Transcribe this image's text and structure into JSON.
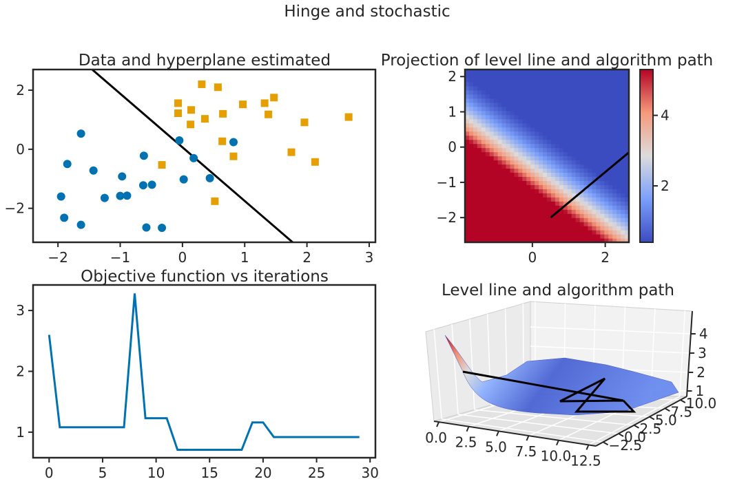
{
  "figure": {
    "suptitle": "Hinge and stochastic"
  },
  "colors": {
    "class_a": "#0072b2",
    "class_b": "#e69f00",
    "line": "#0072b2",
    "path": "#000000",
    "axis": "#262626"
  },
  "chart_data": [
    {
      "id": "scatter",
      "type": "scatter",
      "title": "Data and hyperplane estimated",
      "xlim": [
        -2.4,
        3.1
      ],
      "ylim": [
        -3.15,
        2.7
      ],
      "xticks": [
        -2,
        -1,
        0,
        1,
        2,
        3
      ],
      "yticks": [
        -2,
        0,
        2
      ],
      "xticklabels": [
        "−2",
        "−1",
        "0",
        "1",
        "2",
        "3"
      ],
      "yticklabels": [
        "−2",
        "0",
        "2"
      ],
      "series": [
        {
          "marker": "circle",
          "color": "#0072b2",
          "points": [
            [
              -1.95,
              -1.6
            ],
            [
              -1.9,
              -2.32
            ],
            [
              -1.85,
              -0.5
            ],
            [
              -1.63,
              0.53
            ],
            [
              -1.63,
              -2.56
            ],
            [
              -1.43,
              -0.72
            ],
            [
              -1.25,
              -1.65
            ],
            [
              -1.0,
              -1.58
            ],
            [
              -0.97,
              -0.92
            ],
            [
              -0.89,
              -1.57
            ],
            [
              -0.62,
              -0.22
            ],
            [
              -0.63,
              -1.22
            ],
            [
              -0.58,
              -2.65
            ],
            [
              -0.49,
              -1.2
            ],
            [
              -0.33,
              -2.66
            ],
            [
              -0.05,
              0.3
            ],
            [
              0.02,
              -1.02
            ],
            [
              0.18,
              -0.3
            ],
            [
              0.44,
              -0.98
            ],
            [
              0.82,
              0.24
            ]
          ]
        },
        {
          "marker": "square",
          "color": "#e69f00",
          "points": [
            [
              -0.33,
              -0.53
            ],
            [
              -0.07,
              1.56
            ],
            [
              -0.07,
              1.22
            ],
            [
              0.13,
              0.84
            ],
            [
              0.14,
              1.33
            ],
            [
              0.31,
              2.2
            ],
            [
              0.36,
              1.03
            ],
            [
              0.52,
              -1.76
            ],
            [
              0.57,
              2.1
            ],
            [
              0.64,
              0.27
            ],
            [
              0.65,
              1.2
            ],
            [
              0.82,
              -0.24
            ],
            [
              0.97,
              1.52
            ],
            [
              1.32,
              1.56
            ],
            [
              1.38,
              1.18
            ],
            [
              1.47,
              1.75
            ],
            [
              1.75,
              -0.1
            ],
            [
              1.96,
              0.91
            ],
            [
              2.13,
              -0.43
            ],
            [
              2.67,
              1.09
            ]
          ]
        }
      ],
      "lines": [
        {
          "color": "#000000",
          "x": [
            -1.45,
            1.77
          ],
          "y": [
            2.7,
            -3.15
          ]
        }
      ]
    },
    {
      "id": "projection",
      "type": "heatmap",
      "title": "Projection of level line and algorithm path",
      "xlim": [
        -1.85,
        2.65
      ],
      "ylim": [
        -2.7,
        2.2
      ],
      "xticks": [
        0,
        2
      ],
      "yticks": [
        -2,
        -1,
        0,
        1,
        2
      ],
      "xticklabels": [
        "0",
        "2"
      ],
      "yticklabels": [
        "−2",
        "−1",
        "0",
        "1",
        "2"
      ],
      "colormap": "coolwarm",
      "value_range": [
        0.4,
        5.3
      ],
      "colorbar_ticks": [
        2,
        4
      ],
      "colorbar_ticklabels": [
        "2",
        "4"
      ],
      "path": {
        "x": [
          0.5,
          2.65
        ],
        "y": [
          -2.0,
          -0.15
        ]
      }
    },
    {
      "id": "objective",
      "type": "line",
      "title": "Objective function vs iterations",
      "xlim": [
        -1.5,
        30.5
      ],
      "ylim": [
        0.58,
        3.42
      ],
      "xticks": [
        0,
        5,
        10,
        15,
        20,
        25,
        30
      ],
      "yticks": [
        1,
        2,
        3
      ],
      "xticklabels": [
        "0",
        "5",
        "10",
        "15",
        "20",
        "25",
        "30"
      ],
      "yticklabels": [
        "1",
        "2",
        "3"
      ],
      "x": [
        0,
        1,
        2,
        3,
        4,
        5,
        6,
        7,
        8,
        9,
        10,
        11,
        12,
        13,
        14,
        15,
        16,
        17,
        18,
        19,
        20,
        21,
        22,
        23,
        24,
        25,
        26,
        27,
        28,
        29
      ],
      "values": [
        2.6,
        1.08,
        1.08,
        1.08,
        1.08,
        1.08,
        1.08,
        1.08,
        3.28,
        1.23,
        1.23,
        1.23,
        0.71,
        0.71,
        0.71,
        0.71,
        0.71,
        0.71,
        0.71,
        1.16,
        1.16,
        0.92,
        0.92,
        0.92,
        0.92,
        0.92,
        0.92,
        0.92,
        0.92,
        0.92
      ]
    },
    {
      "id": "surface",
      "type": "surface3d",
      "title": "Level line and algorithm path",
      "xticklabels": [
        "0.0",
        "2.5",
        "5.0",
        "7.5",
        "10.0",
        "12.5"
      ],
      "yticklabels": [
        "−2.5",
        "0.0",
        "2.5",
        "5.0",
        "7.5",
        "10.0"
      ],
      "zticklabels": [
        "1",
        "2",
        "3",
        "4"
      ]
    }
  ]
}
